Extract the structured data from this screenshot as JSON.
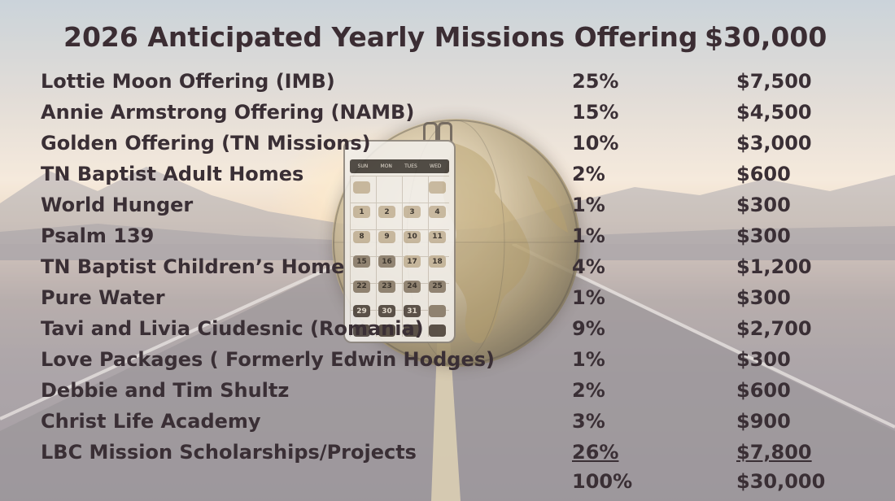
{
  "header": {
    "title": "2026 Anticipated Yearly Missions Offering",
    "total": "$30,000"
  },
  "rows": [
    {
      "name": "Lottie Moon Offering (IMB)",
      "percent": "25%",
      "amount": "$7,500"
    },
    {
      "name": "Annie Armstrong Offering (NAMB)",
      "percent": "15%",
      "amount": "$4,500"
    },
    {
      "name": "Golden Offering (TN Missions)",
      "percent": "10%",
      "amount": "$3,000"
    },
    {
      "name": "TN Baptist Adult Homes",
      "percent": "2%",
      "amount": "$600"
    },
    {
      "name": "World Hunger",
      "percent": "1%",
      "amount": "$300"
    },
    {
      "name": "Psalm 139",
      "percent": "1%",
      "amount": "$300"
    },
    {
      "name": "TN Baptist Children’s Home",
      "percent": "4%",
      "amount": "$1,200"
    },
    {
      "name": "Pure Water",
      "percent": "1%",
      "amount": "$300"
    },
    {
      "name": "Tavi and Livia Ciudesnic (Romania)",
      "percent": "9%",
      "amount": "$2,700"
    },
    {
      "name": "Love Packages ( Formerly Edwin Hodges)",
      "percent": "1%",
      "amount": "$300"
    },
    {
      "name": "Debbie and Tim Shultz",
      "percent": "2%",
      "amount": "$600"
    },
    {
      "name": "Christ Life Academy",
      "percent": "3%",
      "amount": "$900"
    },
    {
      "name": "LBC Mission Scholarships/Projects",
      "percent": "26%",
      "amount": "$7,800"
    }
  ],
  "totals": {
    "percent": "100%",
    "amount": "$30,000"
  },
  "calendar": {
    "days_header": [
      "SUN",
      "MON",
      "TUES",
      "WED"
    ],
    "dates": [
      "1",
      "2",
      "3",
      "4",
      "8",
      "9",
      "10",
      "11",
      "15",
      "16",
      "17",
      "18",
      "22",
      "23",
      "24",
      "25",
      "29",
      "30",
      "31"
    ]
  },
  "colors": {
    "text": "#3a2f35",
    "sky": "#d8d0c8",
    "sun": "#fff2d8"
  }
}
